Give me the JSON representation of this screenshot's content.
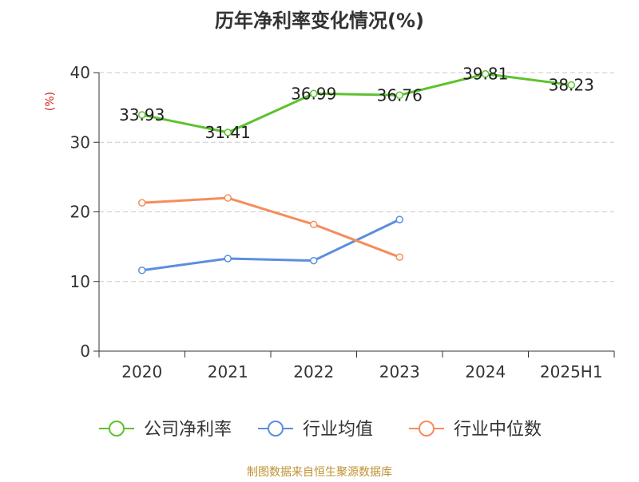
{
  "chart_data": {
    "type": "line",
    "title": "历年净利率变化情况(%)",
    "ylabel": "(%)",
    "xlabel": "",
    "ylim": [
      0,
      40
    ],
    "yticks": [
      0,
      10,
      20,
      30,
      40
    ],
    "ytick_labels": [
      "0",
      "10",
      "20",
      "30",
      "40"
    ],
    "categories": [
      "2020",
      "2021",
      "2022",
      "2023",
      "2024",
      "2025H1"
    ],
    "grid": true,
    "legend_position": "bottom",
    "series": [
      {
        "name": "公司净利率",
        "color": "#5cc22f",
        "values": [
          33.93,
          31.41,
          36.99,
          36.76,
          39.81,
          38.23
        ],
        "labels": [
          "33.93",
          "31.41",
          "36.99",
          "36.76",
          "39.81",
          "38.23"
        ]
      },
      {
        "name": "行业均值",
        "color": "#5b8ee0",
        "values": [
          11.6,
          13.3,
          13.0,
          18.9,
          null,
          null
        ]
      },
      {
        "name": "行业中位数",
        "color": "#f58d5c",
        "values": [
          21.3,
          22.0,
          18.2,
          13.5,
          null,
          null
        ]
      }
    ],
    "source": "制图数据来自恒生聚源数据库"
  }
}
